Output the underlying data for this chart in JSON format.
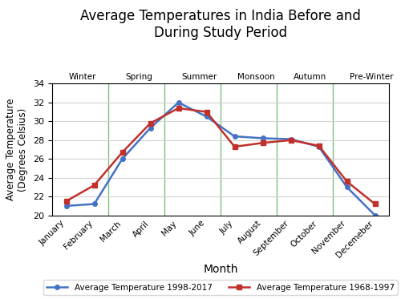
{
  "title": "Average Temperatures in India Before and\nDuring Study Period",
  "xlabel": "Month",
  "ylabel": "Average Temperature\n(Degrees Celsius)",
  "months": [
    "January",
    "February",
    "March",
    "April",
    "May",
    "June",
    "July",
    "August",
    "September",
    "October",
    "November",
    "Decemeber"
  ],
  "temp_1998_2017": [
    21.0,
    21.2,
    26.0,
    29.3,
    32.0,
    30.5,
    28.4,
    28.2,
    28.1,
    27.3,
    23.0,
    20.0
  ],
  "temp_1968_1997": [
    21.5,
    23.2,
    26.7,
    29.8,
    31.4,
    31.0,
    27.3,
    27.7,
    28.0,
    27.4,
    23.6,
    21.2
  ],
  "color_1998": "#4472c4",
  "color_1968": "#c0312b",
  "ylim": [
    20,
    34
  ],
  "yticks": [
    20,
    22,
    24,
    26,
    28,
    30,
    32,
    34
  ],
  "seasons": [
    "Winter",
    "Spring",
    "Summer",
    "Monsoon",
    "Autumn",
    "Pre-Winter"
  ],
  "season_x_positions": [
    0,
    2,
    4,
    6,
    8,
    10
  ],
  "season_dividers": [
    1.5,
    3.5,
    5.5,
    7.5,
    9.5
  ],
  "bg_color": "#ffffff",
  "legend_label_1998": "Average Temperature 1998-2017",
  "legend_label_1968": "Average Temperature 1968-1997",
  "grid_color": "#b0c4b0",
  "divider_color": "#7fbf7f"
}
